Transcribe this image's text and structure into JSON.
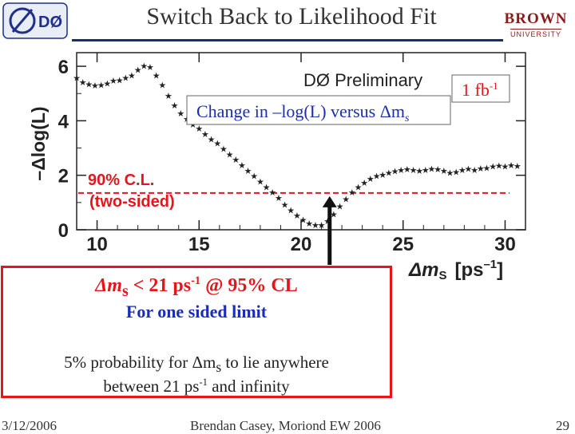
{
  "slide": {
    "title": "Switch Back to Likelihood Fit",
    "logo_left": "DØ",
    "logo_right_main": "BROWN",
    "logo_right_sub": "UNIVERSITY"
  },
  "chart_data": {
    "type": "scatter",
    "title": "Change in –log(L) versus Δm",
    "title_subscript": "s",
    "preliminary_label": "DØ Preliminary",
    "luminosity_label": "1 fb",
    "luminosity_exponent": "-1",
    "xlabel": "Δm",
    "xlabel_subscript": "S",
    "xlabel_unit": "[ps",
    "xlabel_unit_exponent": "–1",
    "xlabel_close": "]",
    "ylabel": "–Δlog(L)",
    "xlim": [
      9,
      31
    ],
    "ylim": [
      0,
      6.5
    ],
    "x_ticks": [
      10,
      15,
      20,
      25,
      30
    ],
    "y_ticks": [
      0,
      2,
      4,
      6
    ],
    "grid": false,
    "threshold": {
      "y": 1.35,
      "label_line1": "90% C.L.",
      "label_line2": "(two-sided)",
      "color": "#e4161c"
    },
    "series": [
      {
        "marker_color": "#222222",
        "x": [
          9.0,
          9.3,
          9.6,
          9.9,
          10.2,
          10.5,
          10.8,
          11.1,
          11.4,
          11.7,
          12.0,
          12.3,
          12.6,
          12.9,
          13.2,
          13.5,
          13.8,
          14.1,
          14.4,
          14.7,
          15.0,
          15.3,
          15.6,
          15.9,
          16.2,
          16.5,
          16.8,
          17.1,
          17.4,
          17.7,
          18.0,
          18.3,
          18.6,
          18.9,
          19.2,
          19.5,
          19.8,
          20.1,
          20.4,
          20.7,
          21.0,
          21.3,
          21.6,
          21.9,
          22.2,
          22.5,
          22.8,
          23.1,
          23.4,
          23.7,
          24.0,
          24.3,
          24.6,
          24.9,
          25.2,
          25.5,
          25.8,
          26.1,
          26.4,
          26.7,
          27.0,
          27.3,
          27.6,
          27.9,
          28.2,
          28.5,
          28.8,
          29.1,
          29.4,
          29.7,
          30.0,
          30.3,
          30.6
        ],
        "y": [
          5.6,
          5.45,
          5.38,
          5.33,
          5.35,
          5.4,
          5.5,
          5.52,
          5.6,
          5.7,
          5.9,
          6.05,
          6.0,
          5.7,
          5.35,
          4.95,
          4.6,
          4.3,
          4.1,
          3.9,
          3.75,
          3.55,
          3.35,
          3.2,
          3.0,
          2.8,
          2.6,
          2.4,
          2.2,
          2.0,
          1.8,
          1.6,
          1.4,
          1.2,
          0.95,
          0.75,
          0.55,
          0.4,
          0.27,
          0.2,
          0.2,
          0.35,
          0.6,
          0.9,
          1.15,
          1.4,
          1.6,
          1.75,
          1.9,
          2.0,
          2.05,
          2.12,
          2.18,
          2.22,
          2.25,
          2.22,
          2.2,
          2.23,
          2.27,
          2.25,
          2.2,
          2.12,
          2.15,
          2.22,
          2.27,
          2.22,
          2.28,
          2.3,
          2.35,
          2.38,
          2.35,
          2.4,
          2.37
        ]
      }
    ]
  },
  "notes": {
    "line1_prefix": "Δm",
    "line1_subscript": "s",
    "line1_text": " <  21 ps",
    "line1_exponent": "-1",
    "line1_suffix": " @ 95% CL",
    "line2": "For one sided limit",
    "line3_prefix": "5% probability for Δm",
    "line3_subscript": "s",
    "line3_suffix": " to lie anywhere",
    "line4_prefix": "between 21 ps",
    "line4_exponent": "-1",
    "line4_suffix": " and infinity"
  },
  "footer": {
    "date": "3/12/2006",
    "author": "Brendan Casey, Moriond EW 2006",
    "page": "29"
  }
}
